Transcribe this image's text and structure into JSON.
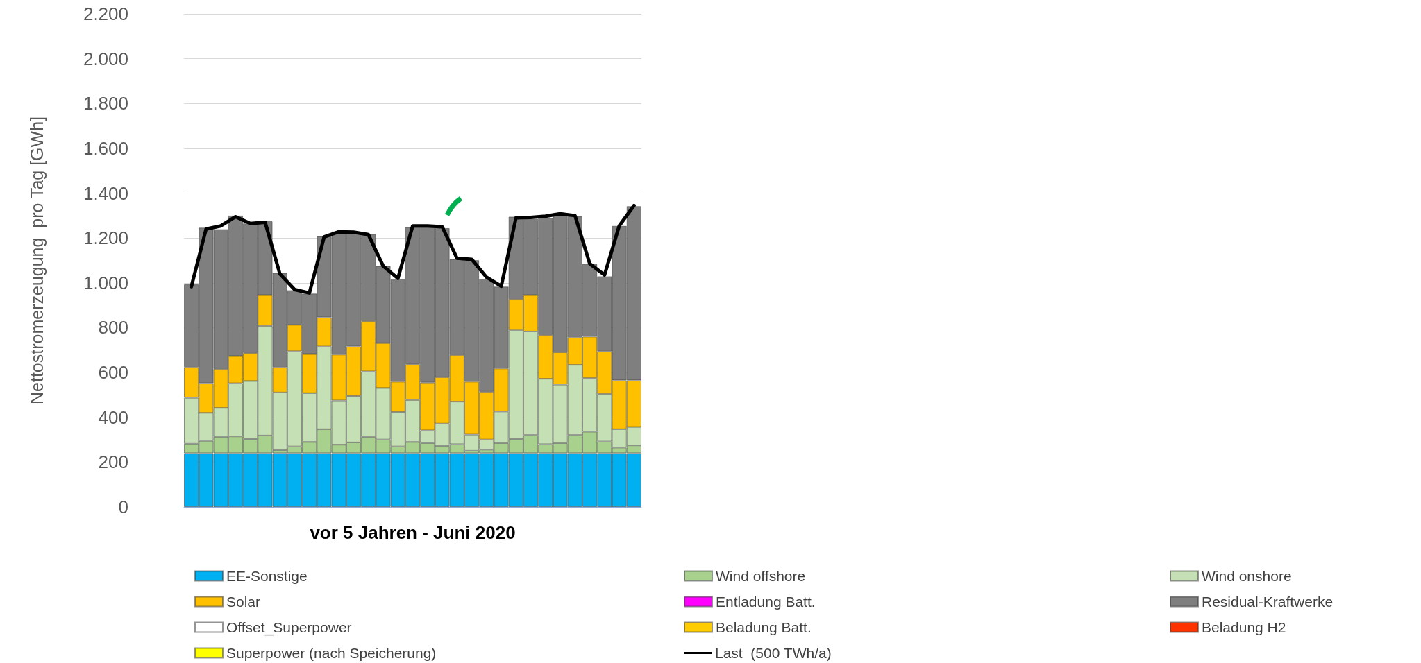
{
  "chart_data": {
    "type": "bar",
    "stacked": true,
    "xlabel": "vor 5 Jahren - Juni 2020",
    "ylabel": "Nettostromerzeugung  pro Tag [GWh]",
    "categories": [
      null,
      null,
      null,
      null,
      null,
      null,
      null,
      null,
      null,
      null,
      null,
      null,
      null,
      null,
      null,
      null,
      null,
      null,
      null,
      null,
      null,
      null,
      null,
      null,
      null,
      null,
      null,
      null,
      null,
      null,
      null
    ],
    "ylim": [
      0,
      2200
    ],
    "yticks": [
      0,
      200,
      400,
      600,
      800,
      {
        "value": 1000,
        "label": "1.000"
      },
      {
        "value": 1200,
        "label": "1.200"
      },
      {
        "value": 1400,
        "label": "1.400"
      },
      {
        "value": 1600,
        "label": "1.600"
      },
      {
        "value": 1800,
        "label": "1.800"
      },
      {
        "value": 2000,
        "label": "2.000"
      },
      {
        "value": 2200,
        "label": "2.200"
      }
    ],
    "grid": "y",
    "legend": "bottom",
    "series": [
      {
        "name": "EE-Sonstige",
        "color": "#00b0f0",
        "values": [
          240,
          240,
          240,
          240,
          240,
          240,
          240,
          240,
          240,
          240,
          240,
          240,
          240,
          240,
          240,
          240,
          240,
          240,
          240,
          240,
          240,
          240,
          240,
          240,
          240,
          240,
          240,
          240,
          240,
          240,
          240
        ]
      },
      {
        "name": "Wind offshore",
        "color": "#a9d18e",
        "values": [
          42,
          55,
          73,
          75,
          63,
          79,
          14,
          30,
          50,
          107,
          38,
          48,
          73,
          61,
          30,
          50,
          45,
          32,
          40,
          11,
          16,
          45,
          63,
          81,
          40,
          45,
          81,
          96,
          52,
          25,
          35
        ]
      },
      {
        "name": "Wind onshore",
        "color": "#c5e0b4",
        "values": [
          205,
          125,
          129,
          237,
          259,
          489,
          257,
          425,
          218,
          369,
          197,
          207,
          292,
          230,
          154,
          187,
          57,
          100,
          190,
          72,
          45,
          141,
          485,
          462,
          292,
          261,
          313,
          239,
          212,
          82,
          82
        ]
      },
      {
        "name": "Solar",
        "color": "#ffc000",
        "values": [
          137,
          132,
          174,
          121,
          125,
          137,
          113,
          118,
          174,
          130,
          205,
          221,
          224,
          200,
          135,
          160,
          213,
          207,
          208,
          236,
          213,
          192,
          140,
          162,
          195,
          144,
          123,
          185,
          190,
          218,
          208
        ]
      },
      {
        "name": "Entladung Batt.",
        "color": "#ff00ff",
        "values": [
          null,
          null,
          null,
          null,
          null,
          null,
          null,
          null,
          null,
          null,
          null,
          null,
          null,
          null,
          null,
          null,
          null,
          null,
          null,
          null,
          null,
          null,
          null,
          null,
          null,
          null,
          null,
          null,
          null,
          null,
          null
        ]
      },
      {
        "name": "Residual-Kraftwerke",
        "color": "#7f7f7f",
        "values": [
          369,
          694,
          623,
          627,
          578,
          330,
          420,
          154,
          270,
          362,
          549,
          508,
          389,
          344,
          459,
          612,
          694,
          665,
          428,
          542,
          504,
          365,
          367,
          340,
          523,
          621,
          540,
          325,
          335,
          689,
          777
        ]
      },
      {
        "name": "Offset_Superpower",
        "color": "#ffffff",
        "values": [
          null,
          null,
          null,
          null,
          null,
          null,
          null,
          null,
          null,
          null,
          null,
          null,
          null,
          null,
          null,
          null,
          null,
          null,
          null,
          null,
          null,
          null,
          null,
          null,
          null,
          null,
          null,
          null,
          null,
          null,
          null
        ]
      },
      {
        "name": "Beladung Batt.",
        "color": "#ffcc00",
        "values": [
          null,
          null,
          null,
          null,
          null,
          null,
          null,
          null,
          null,
          null,
          null,
          null,
          null,
          null,
          null,
          null,
          null,
          null,
          null,
          null,
          null,
          null,
          null,
          null,
          null,
          null,
          null,
          null,
          null,
          null,
          null
        ]
      },
      {
        "name": "Beladung H2",
        "color": "#ff3300",
        "values": [
          null,
          null,
          null,
          null,
          null,
          null,
          null,
          null,
          null,
          null,
          null,
          null,
          null,
          null,
          null,
          null,
          null,
          null,
          null,
          null,
          null,
          null,
          null,
          null,
          null,
          null,
          null,
          null,
          null,
          null,
          null
        ]
      },
      {
        "name": "Superpower (nach Speicherung)",
        "color": "#ffff00",
        "values": [
          null,
          null,
          null,
          null,
          null,
          null,
          null,
          null,
          null,
          null,
          null,
          null,
          null,
          null,
          null,
          null,
          null,
          null,
          null,
          null,
          null,
          null,
          null,
          null,
          null,
          null,
          null,
          null,
          null,
          null,
          null
        ]
      },
      {
        "name": "Last  (500 TWh/a)",
        "type": "line",
        "color": "#000000",
        "marker": "none",
        "line_style": "solid",
        "values": [
          983,
          1240,
          1254,
          1295,
          1265,
          1270,
          1040,
          970,
          955,
          1205,
          1228,
          1226,
          1215,
          1075,
          1020,
          1254,
          1254,
          1250,
          1110,
          1105,
          1025,
          985,
          1290,
          1292,
          1297,
          1308,
          1300,
          1085,
          1035,
          1255,
          1345
        ]
      }
    ]
  }
}
